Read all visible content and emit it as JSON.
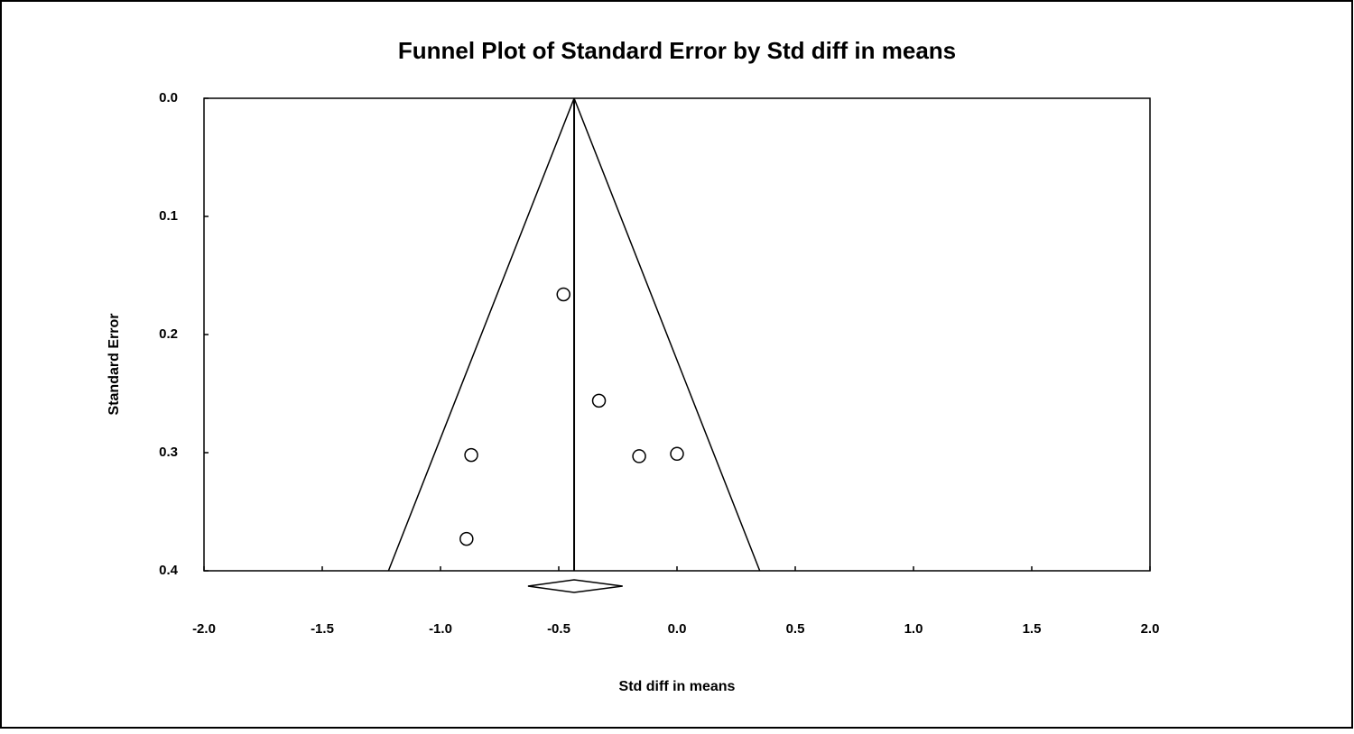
{
  "chart_data": {
    "type": "funnel",
    "title": "Funnel Plot of Standard Error by Std diff in means",
    "x_label": "Std diff in means",
    "y_label": "Standard Error",
    "x": [
      -0.48,
      -0.33,
      -0.87,
      -0.16,
      0.0,
      -0.89
    ],
    "values": [
      0.166,
      0.256,
      0.302,
      0.303,
      0.301,
      0.373
    ],
    "xlim": [
      -2.0,
      2.0
    ],
    "ylim": [
      0.0,
      0.4
    ],
    "y_reversed": true,
    "xticks": [
      {
        "value": -2.0,
        "label": "-2.0"
      },
      -1.5,
      {
        "value": -1.0,
        "label": "-1.0"
      },
      -0.5,
      {
        "value": 0.0,
        "label": "0.0"
      },
      0.5,
      {
        "value": 1.0,
        "label": "1.0"
      },
      1.5,
      {
        "value": 2.0,
        "label": "2.0"
      }
    ],
    "yticks": [
      {
        "value": 0.0,
        "label": "0.0"
      },
      0.1,
      0.2,
      0.3,
      0.4
    ],
    "summary": -0.435,
    "funnel": {
      "se": [
        0.0,
        0.4
      ],
      "lower": [
        -0.435,
        -1.22
      ],
      "upper": [
        -0.435,
        0.35
      ]
    },
    "diamond": {
      "center": -0.435,
      "lower": -0.63,
      "upper": -0.23
    },
    "color": "#000000"
  }
}
